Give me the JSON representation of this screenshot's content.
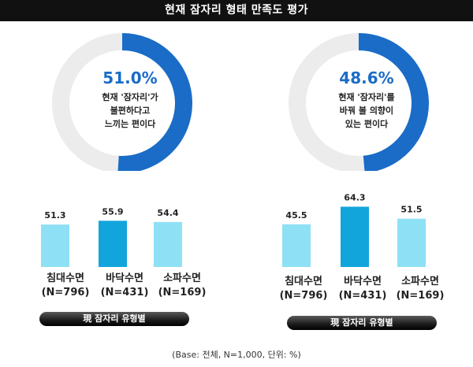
{
  "title": "현재 잠자리 형태 만족도 평가",
  "footnote": "(Base: 전체, N=1,000, 단위: %)",
  "colors": {
    "donut_fill": "#1a6cc7",
    "donut_track": "#ececec",
    "bar_light": "#8ee0f5",
    "bar_dark": "#11a5dc"
  },
  "panels": [
    {
      "donut_pct": "51.0%",
      "donut_value": 51.0,
      "caption": [
        "현재 '잠자리'가",
        "불편하다고",
        "느끼는 편이다"
      ],
      "categories": [
        {
          "name": "침대수면",
          "n": "(N=796)"
        },
        {
          "name": "바닥수면",
          "n": "(N=431)"
        },
        {
          "name": "소파수면",
          "n": "(N=169)"
        }
      ],
      "values": [
        51.3,
        55.9,
        54.4
      ],
      "value_labels": [
        "51.3",
        "55.9",
        "54.4"
      ],
      "pill": "現 잠자리 유형별"
    },
    {
      "donut_pct": "48.6%",
      "donut_value": 48.6,
      "caption": [
        "현재 '잠자리'를",
        "바꿔 볼 의향이",
        "있는 편이다"
      ],
      "categories": [
        {
          "name": "침대수면",
          "n": "(N=796)"
        },
        {
          "name": "바닥수면",
          "n": "(N=431)"
        },
        {
          "name": "소파수면",
          "n": "(N=169)"
        }
      ],
      "values": [
        45.5,
        64.3,
        51.5
      ],
      "value_labels": [
        "45.5",
        "64.3",
        "51.5"
      ],
      "pill": "現 잠자리 유형별"
    }
  ],
  "chart_data": [
    {
      "type": "pie",
      "values": [
        51.0,
        49.0
      ],
      "labels": [
        "현재 '잠자리'가 불편하다고 느끼는 편이다",
        ""
      ]
    },
    {
      "type": "bar",
      "categories": [
        "침대수면",
        "바닥수면",
        "소파수면"
      ],
      "values": [
        51.3,
        55.9,
        54.4
      ],
      "xlabel": "現 잠자리 유형별"
    },
    {
      "type": "pie",
      "values": [
        48.6,
        51.4
      ],
      "labels": [
        "현재 '잠자리'를 바꿔 볼 의향이 있는 편이다",
        ""
      ]
    },
    {
      "type": "bar",
      "categories": [
        "침대수면",
        "바닥수면",
        "소파수면"
      ],
      "values": [
        45.5,
        64.3,
        51.5
      ],
      "xlabel": "現 잠자리 유형별"
    }
  ]
}
